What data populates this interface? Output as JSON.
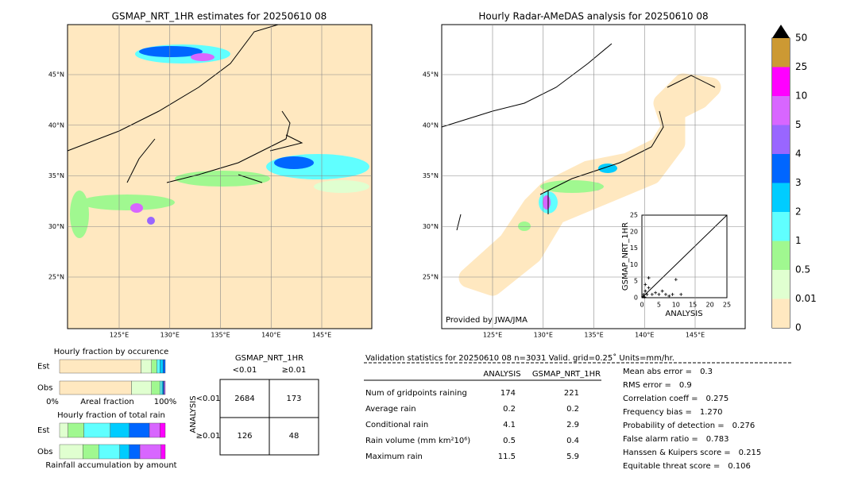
{
  "maps": [
    {
      "title": "GSMAP_NRT_1HR estimates for 20250610 08",
      "lat_ticks": [
        {
          "value": 45,
          "label": "45°N"
        },
        {
          "value": 40,
          "label": "40°N"
        },
        {
          "value": 35,
          "label": "35°N"
        },
        {
          "value": 30,
          "label": "30°N"
        },
        {
          "value": 25,
          "label": "25°N"
        }
      ],
      "lon_ticks": [
        {
          "value": 125,
          "label": "125°E"
        },
        {
          "value": 130,
          "label": "130°E"
        },
        {
          "value": 135,
          "label": "135°E"
        },
        {
          "value": 140,
          "label": "140°E"
        },
        {
          "value": 145,
          "label": "145°E"
        }
      ]
    },
    {
      "title": "Hourly Radar-AMeDAS analysis for 20250610 08",
      "credit": "Provided by JWA/JMA",
      "lat_ticks": [
        {
          "value": 45,
          "label": "45°N"
        },
        {
          "value": 40,
          "label": "40°N"
        },
        {
          "value": 35,
          "label": "35°N"
        },
        {
          "value": 30,
          "label": "30°N"
        },
        {
          "value": 25,
          "label": "25°N"
        }
      ],
      "lon_ticks": [
        {
          "value": 125,
          "label": "125°E"
        },
        {
          "value": 130,
          "label": "130°E"
        },
        {
          "value": 135,
          "label": "135°E"
        },
        {
          "value": 140,
          "label": "140°E"
        },
        {
          "value": 145,
          "label": "145°E"
        }
      ]
    }
  ],
  "colorbar": {
    "ticks": [
      0,
      0.01,
      0.5,
      1,
      2,
      3,
      4,
      5,
      10,
      25,
      50
    ],
    "colors": [
      "#ffe8c0",
      "#e0ffd0",
      "#a0f890",
      "#60ffff",
      "#00ccff",
      "#0066ff",
      "#9966ff",
      "#d866ff",
      "#ff00ff",
      "#cc9933"
    ],
    "extend_color": "#000000"
  },
  "scatter": {
    "type": "scatter",
    "xlabel": "ANALYSIS",
    "ylabel": "GSMAP_NRT_1HR",
    "xlim": [
      0,
      25
    ],
    "ylim": [
      0,
      25
    ],
    "xticks": [
      0,
      5,
      10,
      15,
      20,
      25
    ],
    "yticks": [
      0,
      5,
      10,
      15,
      20,
      25
    ],
    "x": [
      0.3,
      0.5,
      1,
      1.5,
      2,
      3,
      4,
      5,
      6,
      7,
      8,
      9,
      10,
      11.5,
      2,
      1,
      0.8
    ],
    "y": [
      0.3,
      1,
      2,
      1,
      3,
      1,
      1.5,
      1,
      2,
      1,
      0.5,
      1,
      5.5,
      1,
      6,
      4,
      0.2
    ]
  },
  "occurrence": {
    "title": "Hourly fraction by occurence",
    "axis_left": "0%",
    "axis_mid": "Areal fraction",
    "axis_right": "100%",
    "colors": [
      "#ffe8c0",
      "#e0ffd0",
      "#a0f890",
      "#60ffff",
      "#00ccff",
      "#0066ff",
      "#d866ff"
    ],
    "rows": [
      {
        "label": "Est",
        "values": [
          0.77,
          0.1,
          0.05,
          0.03,
          0.03,
          0.02,
          0
        ]
      },
      {
        "label": "Obs",
        "values": [
          0.68,
          0.19,
          0.08,
          0.02,
          0.01,
          0.01,
          0.01
        ]
      }
    ]
  },
  "amount": {
    "title": "Hourly fraction of total rain",
    "caption": "Rainfall accumulation by amount",
    "colors": [
      "#e0ffd0",
      "#a0f890",
      "#60ffff",
      "#00ccff",
      "#0066ff",
      "#d866ff",
      "#ff00ff"
    ],
    "rows": [
      {
        "label": "Est",
        "values": [
          0.08,
          0.15,
          0.25,
          0.18,
          0.19,
          0.1,
          0.05
        ]
      },
      {
        "label": "Obs",
        "values": [
          0.22,
          0.15,
          0.2,
          0.09,
          0.1,
          0.2,
          0.04
        ]
      }
    ]
  },
  "contingency": {
    "title": "GSMAP_NRT_1HR",
    "ylabel": "ANALYSIS",
    "columns": [
      "<0.01",
      "≥0.01"
    ],
    "rows": [
      "<0.01",
      "≥0.01"
    ],
    "cells": [
      [
        2684,
        173
      ],
      [
        126,
        48
      ]
    ]
  },
  "validation": {
    "header": "Validation statistics for 20250610 08  n=3031 Valid. grid=0.25˚ Units=mm/hr.",
    "columns": [
      "ANALYSIS",
      "GSMAP_NRT_1HR"
    ],
    "rows": [
      [
        "Num of gridpoints raining",
        174,
        221
      ],
      [
        "Average rain",
        0.2,
        0.2
      ],
      [
        "Conditional rain",
        4.1,
        2.9
      ],
      [
        "Rain volume (mm km²10⁶)",
        0.5,
        0.4
      ],
      [
        "Maximum rain",
        11.5,
        5.9
      ]
    ],
    "scores": [
      [
        "Mean abs error =",
        0.3
      ],
      [
        "RMS error =",
        0.9
      ],
      [
        "Correlation coeff =",
        0.275
      ],
      [
        "Frequency bias =",
        "1.270"
      ],
      [
        "Probability of detection =",
        0.276
      ],
      [
        "False alarm ratio =",
        0.783
      ],
      [
        "Hanssen & Kuipers score =",
        0.215
      ],
      [
        "Equitable threat score =",
        0.106
      ]
    ]
  }
}
